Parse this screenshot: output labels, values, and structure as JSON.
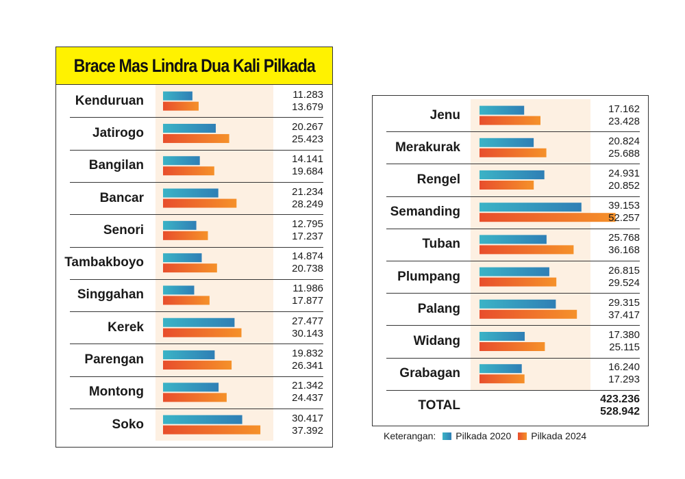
{
  "chart_data": {
    "type": "bar",
    "title": "Brace Mas Lindra Dua Kali Pilkada",
    "legend_label": "Keterangan:",
    "series": [
      {
        "name": "Pilkada 2020",
        "color": "#2f7fb5"
      },
      {
        "name": "Pilkada 2024",
        "color": "#e84e2c"
      }
    ],
    "left_rows": [
      {
        "label": "Kenduruan",
        "v2020": 11.283,
        "v2024": 13.679,
        "t2020": "11.283",
        "t2024": "13.679"
      },
      {
        "label": "Jatirogo",
        "v2020": 20.267,
        "v2024": 25.423,
        "t2020": "20.267",
        "t2024": "25.423"
      },
      {
        "label": "Bangilan",
        "v2020": 14.141,
        "v2024": 19.684,
        "t2020": "14.141",
        "t2024": "19.684"
      },
      {
        "label": "Bancar",
        "v2020": 21.234,
        "v2024": 28.249,
        "t2020": "21.234",
        "t2024": "28.249"
      },
      {
        "label": "Senori",
        "v2020": 12.795,
        "v2024": 17.237,
        "t2020": "12.795",
        "t2024": "17.237"
      },
      {
        "label": "Tambakboyo",
        "v2020": 14.874,
        "v2024": 20.738,
        "t2020": "14.874",
        "t2024": "20.738"
      },
      {
        "label": "Singgahan",
        "v2020": 11.986,
        "v2024": 17.877,
        "t2020": "11.986",
        "t2024": "17.877"
      },
      {
        "label": "Kerek",
        "v2020": 27.477,
        "v2024": 30.143,
        "t2020": "27.477",
        "t2024": "30.143"
      },
      {
        "label": "Parengan",
        "v2020": 19.832,
        "v2024": 26.341,
        "t2020": "19.832",
        "t2024": "26.341"
      },
      {
        "label": "Montong",
        "v2020": 21.342,
        "v2024": 24.437,
        "t2020": "21.342",
        "t2024": "24.437"
      },
      {
        "label": "Soko",
        "v2020": 30.417,
        "v2024": 37.392,
        "t2020": "30.417",
        "t2024": "37.392"
      }
    ],
    "right_rows": [
      {
        "label": "Jenu",
        "v2020": 17.162,
        "v2024": 23.428,
        "t2020": "17.162",
        "t2024": "23.428"
      },
      {
        "label": "Merakurak",
        "v2020": 20.824,
        "v2024": 25.688,
        "t2020": "20.824",
        "t2024": "25.688"
      },
      {
        "label": "Rengel",
        "v2020": 24.931,
        "v2024": 20.852,
        "t2020": "24.931",
        "t2024": "20.852"
      },
      {
        "label": "Semanding",
        "v2020": 39.153,
        "v2024": 52.257,
        "t2020": "39.153",
        "t2024": "52.257"
      },
      {
        "label": "Tuban",
        "v2020": 25.768,
        "v2024": 36.168,
        "t2020": "25.768",
        "t2024": "36.168"
      },
      {
        "label": "Plumpang",
        "v2020": 26.815,
        "v2024": 29.524,
        "t2020": "26.815",
        "t2024": "29.524"
      },
      {
        "label": "Palang",
        "v2020": 29.315,
        "v2024": 37.417,
        "t2020": "29.315",
        "t2024": "37.417"
      },
      {
        "label": "Widang",
        "v2020": 17.38,
        "v2024": 25.115,
        "t2020": "17.380",
        "t2024": "25.115"
      },
      {
        "label": "Grabagan",
        "v2020": 16.24,
        "v2024": 17.293,
        "t2020": "16.240",
        "t2024": "17.293"
      }
    ],
    "total": {
      "label": "TOTAL",
      "t2020": "423.236",
      "t2024": "528.942"
    }
  },
  "colors": {
    "title_bg": "#fff200",
    "shade": "#fdf0e2",
    "blue_dark": "#2f7fb5",
    "blue_light": "#3bb3c6",
    "red_dark": "#e84e2c",
    "red_light": "#f5912a"
  }
}
